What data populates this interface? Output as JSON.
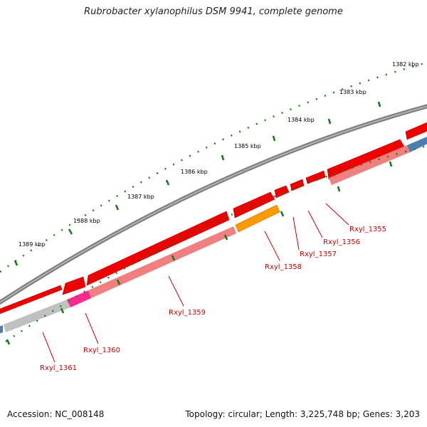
{
  "title": "Rubrobacter xylanophilus DSM 9941, complete genome",
  "accession": "Accession: NC_008148",
  "summary": "Topology: circular; Length: 3,225,748 bp; Genes: 3,203",
  "ruler": [
    "1382 kbp",
    "1383 kbp",
    "1384 kbp",
    "1385 kbp",
    "1386 kbp",
    "1387 kbp",
    "1388 kbp",
    "1389 kbp"
  ],
  "genes": [
    "Rxyl_1355",
    "Rxyl_1356",
    "Rxyl_1357",
    "Rxyl_1358",
    "Rxyl_1359",
    "Rxyl_1360",
    "Rxyl_1361"
  ],
  "colors": {
    "backbone": "#808080",
    "forward_cds": "#ee0000",
    "reverse_cds": "#f08080",
    "orange_cds": "#ff9900",
    "magenta_cds": "#ff2a8f",
    "grey_cds": "#c0c0c0",
    "blue_cds": "#4a7fb0",
    "ticks": "#1a7a1a",
    "labels": "#cc0000"
  }
}
